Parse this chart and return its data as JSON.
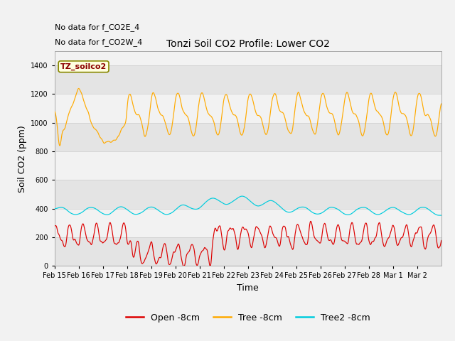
{
  "title": "Tonzi Soil CO2 Profile: Lower CO2",
  "xlabel": "Time",
  "ylabel": "Soil CO2 (ppm)",
  "ylim": [
    0,
    1500
  ],
  "yticks": [
    0,
    200,
    400,
    600,
    800,
    1000,
    1200,
    1400
  ],
  "date_labels": [
    "Feb 15",
    "Feb 16",
    "Feb 17",
    "Feb 18",
    "Feb 19",
    "Feb 20",
    "Feb 21",
    "Feb 22",
    "Feb 23",
    "Feb 24",
    "Feb 25",
    "Feb 26",
    "Feb 27",
    "Feb 28",
    "Mar 1",
    "Mar 2"
  ],
  "note1": "No data for f_CO2E_4",
  "note2": "No data for f_CO2W_4",
  "box_label": "TZ_soilco2",
  "legend": [
    "Open -8cm",
    "Tree -8cm",
    "Tree2 -8cm"
  ],
  "colors": {
    "open": "#dd0000",
    "tree": "#ffaa00",
    "tree2": "#00ccdd"
  },
  "band_color": "#e4e4e4",
  "bg_color": "#f2f2f2"
}
